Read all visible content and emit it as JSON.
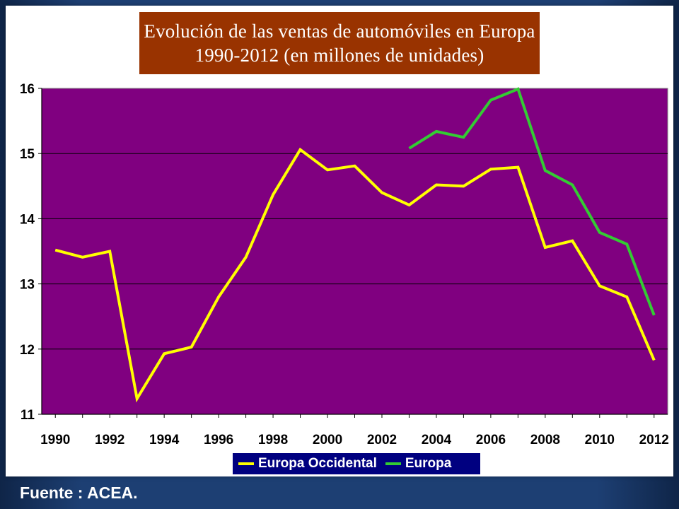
{
  "title_line1": "Evolución de las ventas de automóviles en Europa",
  "title_line2": "1990-2012 (en millones de unidades)",
  "source": "Fuente : ACEA.",
  "colors": {
    "plot_bg": "#800080",
    "title_bg": "#993300",
    "legend_bg": "#000080",
    "slide_bg": "#1d3f73",
    "gridline": "#000000"
  },
  "chart_data": {
    "type": "line",
    "title": "Evolución de las ventas de automóviles en Europa 1990-2012 (en millones de unidades)",
    "xlabel": "",
    "ylabel": "",
    "x": [
      1990,
      1991,
      1992,
      1993,
      1994,
      1995,
      1996,
      1997,
      1998,
      1999,
      2000,
      2001,
      2002,
      2003,
      2004,
      2005,
      2006,
      2007,
      2008,
      2009,
      2010,
      2011,
      2012
    ],
    "x_tick_labels": [
      "1990",
      "1992",
      "1994",
      "1996",
      "1998",
      "2000",
      "2002",
      "2004",
      "2006",
      "2008",
      "2010",
      "2012"
    ],
    "y_tick_labels": [
      "11",
      "12",
      "13",
      "14",
      "15",
      "16"
    ],
    "ylim": [
      11,
      16
    ],
    "grid": "horizontal",
    "legend_position": "bottom",
    "series": [
      {
        "name": "Europa Occidental",
        "color": "#ffff00",
        "values": [
          13.52,
          13.41,
          13.5,
          11.24,
          11.93,
          12.03,
          12.8,
          13.41,
          14.37,
          15.06,
          14.75,
          14.81,
          14.4,
          14.21,
          14.52,
          14.5,
          14.76,
          14.79,
          13.56,
          13.66,
          12.97,
          12.8,
          11.83
        ]
      },
      {
        "name": "Europa",
        "color": "#33cc33",
        "values": [
          null,
          null,
          null,
          null,
          null,
          null,
          null,
          null,
          null,
          null,
          null,
          null,
          null,
          15.08,
          15.34,
          15.25,
          15.82,
          15.99,
          14.74,
          14.52,
          13.79,
          13.61,
          12.52
        ]
      }
    ]
  }
}
